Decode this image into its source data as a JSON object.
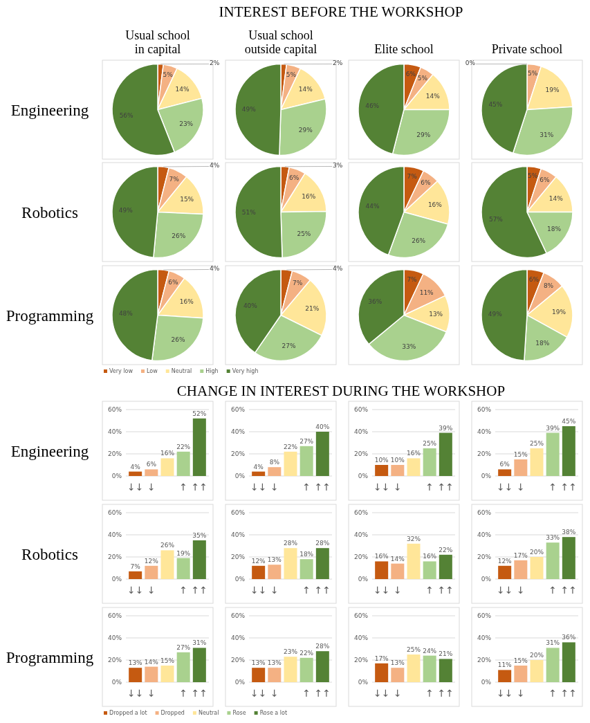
{
  "chart_data": [
    {
      "type": "pie",
      "title": "Usual school in capital",
      "annotations": [
        "INTEREST BEFORE THE WORKSHOP",
        "Engineering"
      ],
      "categories": [
        null,
        null,
        null,
        null,
        null
      ],
      "values": [
        2,
        5,
        14,
        23,
        56
      ],
      "value_labels": [
        "2%",
        "5%",
        "14%",
        "23%",
        "56%"
      ],
      "colors": [
        "#c55a11",
        "#f4b183",
        "#ffe699",
        "#a9d18e",
        "#548235"
      ]
    },
    {
      "type": "pie",
      "title": "Usual school outside capital",
      "categories": [
        null,
        null,
        null,
        null,
        null
      ],
      "values": [
        2,
        5,
        14,
        29,
        49
      ],
      "value_labels": [
        "2%",
        "5%",
        "14%",
        "29%",
        "49%"
      ],
      "colors": [
        "#c55a11",
        "#f4b183",
        "#ffe699",
        "#a9d18e",
        "#548235"
      ]
    },
    {
      "type": "pie",
      "title": "Elite school",
      "categories": [
        null,
        null,
        null,
        null,
        null
      ],
      "values": [
        6,
        5,
        14,
        29,
        46
      ],
      "value_labels": [
        "6%",
        "5%",
        "14%",
        "29%",
        "46%"
      ],
      "colors": [
        "#c55a11",
        "#f4b183",
        "#ffe699",
        "#a9d18e",
        "#548235"
      ]
    },
    {
      "type": "pie",
      "title": "Private school",
      "categories": [
        null,
        null,
        null,
        null,
        null
      ],
      "values": [
        0,
        5,
        19,
        31,
        45
      ],
      "value_labels": [
        "0%",
        "5%",
        "19%",
        "31%",
        "45%"
      ],
      "colors": [
        "#c55a11",
        "#f4b183",
        "#ffe699",
        "#a9d18e",
        "#548235"
      ]
    },
    {
      "type": "pie",
      "annotations": [
        "Robotics"
      ],
      "categories": [
        null,
        null,
        null,
        null,
        null
      ],
      "values": [
        4,
        7,
        15,
        26,
        49
      ],
      "value_labels": [
        "4%",
        "7%",
        "15%",
        "26%",
        "49%"
      ],
      "colors": [
        "#c55a11",
        "#f4b183",
        "#ffe699",
        "#a9d18e",
        "#548235"
      ]
    },
    {
      "type": "pie",
      "categories": [
        null,
        null,
        null,
        null,
        null
      ],
      "values": [
        3,
        6,
        16,
        25,
        51
      ],
      "value_labels": [
        "3%",
        "6%",
        "16%",
        "25%",
        "51%"
      ],
      "colors": [
        "#c55a11",
        "#f4b183",
        "#ffe699",
        "#a9d18e",
        "#548235"
      ]
    },
    {
      "type": "pie",
      "categories": [
        null,
        null,
        null,
        null,
        null
      ],
      "values": [
        7,
        6,
        16,
        26,
        44
      ],
      "value_labels": [
        "7%",
        "6%",
        "16%",
        "26%",
        "44%"
      ],
      "colors": [
        "#c55a11",
        "#f4b183",
        "#ffe699",
        "#a9d18e",
        "#548235"
      ]
    },
    {
      "type": "pie",
      "categories": [
        null,
        null,
        null,
        null,
        null
      ],
      "values": [
        5,
        6,
        14,
        18,
        57
      ],
      "value_labels": [
        "5%",
        "6%",
        "14%",
        "18%",
        "57%"
      ],
      "colors": [
        "#c55a11",
        "#f4b183",
        "#ffe699",
        "#a9d18e",
        "#548235"
      ]
    },
    {
      "type": "pie",
      "annotations": [
        "Programming"
      ],
      "legend": "bottom",
      "categories": [
        "Very low",
        "Low",
        "Neutral",
        "High",
        "Very high"
      ],
      "values": [
        4,
        6,
        16,
        26,
        48
      ],
      "value_labels": [
        "4%",
        "6%",
        "16%",
        "26%",
        "48%"
      ],
      "colors": [
        "#c55a11",
        "#f4b183",
        "#ffe699",
        "#a9d18e",
        "#548235"
      ]
    },
    {
      "type": "pie",
      "categories": [
        null,
        null,
        null,
        null,
        null
      ],
      "values": [
        4,
        7,
        21,
        27,
        40
      ],
      "value_labels": [
        "4%",
        "7%",
        "21%",
        "27%",
        "40%"
      ],
      "colors": [
        "#c55a11",
        "#f4b183",
        "#ffe699",
        "#a9d18e",
        "#548235"
      ]
    },
    {
      "type": "pie",
      "categories": [
        null,
        null,
        null,
        null,
        null
      ],
      "values": [
        7,
        11,
        13,
        33,
        36
      ],
      "value_labels": [
        "7%",
        "11%",
        "13%",
        "33%",
        "36%"
      ],
      "colors": [
        "#c55a11",
        "#f4b183",
        "#ffe699",
        "#a9d18e",
        "#548235"
      ]
    },
    {
      "type": "pie",
      "categories": [
        null,
        null,
        null,
        null,
        null
      ],
      "values": [
        6,
        8,
        19,
        18,
        49
      ],
      "value_labels": [
        "6%",
        "8%",
        "19%",
        "18%",
        "49%"
      ],
      "colors": [
        "#c55a11",
        "#f4b183",
        "#ffe699",
        "#a9d18e",
        "#548235"
      ]
    },
    {
      "type": "bar",
      "annotations": [
        "CHANGE IN INTEREST DURING THE WORKSHOP",
        "Engineering"
      ],
      "categories": [
        "↓↓",
        "↓",
        null,
        "↑",
        "↑↑"
      ],
      "values": [
        4,
        6,
        16,
        22,
        52
      ],
      "value_labels": [
        "4%",
        "6%",
        "16%",
        "22%",
        "52%"
      ],
      "colors": [
        "#c55a11",
        "#f4b183",
        "#ffe699",
        "#a9d18e",
        "#548235"
      ],
      "ylim": [
        0,
        60
      ],
      "yticks": [
        {
          "value": 0,
          "label": "0%"
        },
        {
          "value": 20,
          "label": "20%"
        },
        {
          "value": 40,
          "label": "40%"
        },
        {
          "value": 60,
          "label": "60%"
        }
      ],
      "grid": "y"
    },
    {
      "type": "bar",
      "categories": [
        "↓↓",
        "↓",
        null,
        "↑",
        "↑↑"
      ],
      "values": [
        4,
        8,
        22,
        27,
        40
      ],
      "value_labels": [
        "4%",
        "8%",
        "22%",
        "27%",
        "40%"
      ],
      "colors": [
        "#c55a11",
        "#f4b183",
        "#ffe699",
        "#a9d18e",
        "#548235"
      ],
      "ylim": [
        0,
        60
      ],
      "yticks": [
        {
          "value": 0,
          "label": "0%"
        },
        {
          "value": 20,
          "label": "20%"
        },
        {
          "value": 40,
          "label": "40%"
        },
        {
          "value": 60,
          "label": "60%"
        }
      ],
      "grid": "y"
    },
    {
      "type": "bar",
      "categories": [
        "↓↓",
        "↓",
        null,
        "↑",
        "↑↑"
      ],
      "values": [
        10,
        10,
        16,
        25,
        39
      ],
      "value_labels": [
        "10%",
        "10%",
        "16%",
        "25%",
        "39%"
      ],
      "colors": [
        "#c55a11",
        "#f4b183",
        "#ffe699",
        "#a9d18e",
        "#548235"
      ],
      "ylim": [
        0,
        60
      ],
      "yticks": [
        {
          "value": 0,
          "label": "0%"
        },
        {
          "value": 20,
          "label": "20%"
        },
        {
          "value": 40,
          "label": "40%"
        },
        {
          "value": 60,
          "label": "60%"
        }
      ],
      "grid": "y"
    },
    {
      "type": "bar",
      "categories": [
        "↓↓",
        "↓",
        null,
        "↑",
        "↑↑"
      ],
      "values": [
        6,
        15,
        25,
        39,
        45
      ],
      "value_labels": [
        "6%",
        "15%",
        "25%",
        "39%",
        "45%"
      ],
      "colors": [
        "#c55a11",
        "#f4b183",
        "#ffe699",
        "#a9d18e",
        "#548235"
      ],
      "ylim": [
        0,
        60
      ],
      "yticks": [
        {
          "value": 0,
          "label": "0%"
        },
        {
          "value": 20,
          "label": "20%"
        },
        {
          "value": 40,
          "label": "40%"
        },
        {
          "value": 60,
          "label": "60%"
        }
      ],
      "grid": "y"
    },
    {
      "type": "bar",
      "annotations": [
        "Robotics"
      ],
      "categories": [
        "↓↓",
        "↓",
        null,
        "↑",
        "↑↑"
      ],
      "values": [
        7,
        12,
        26,
        19,
        35
      ],
      "value_labels": [
        "7%",
        "12%",
        "26%",
        "19%",
        "35%"
      ],
      "colors": [
        "#c55a11",
        "#f4b183",
        "#ffe699",
        "#a9d18e",
        "#548235"
      ],
      "ylim": [
        0,
        60
      ],
      "yticks": [
        {
          "value": 0,
          "label": "0%"
        },
        {
          "value": 20,
          "label": "20%"
        },
        {
          "value": 40,
          "label": "40%"
        },
        {
          "value": 60,
          "label": "60%"
        }
      ],
      "grid": "y"
    },
    {
      "type": "bar",
      "categories": [
        "↓↓",
        "↓",
        null,
        "↑",
        "↑↑"
      ],
      "values": [
        12,
        13,
        28,
        18,
        28
      ],
      "value_labels": [
        "12%",
        "13%",
        "28%",
        "18%",
        "28%"
      ],
      "colors": [
        "#c55a11",
        "#f4b183",
        "#ffe699",
        "#a9d18e",
        "#548235"
      ],
      "ylim": [
        0,
        60
      ],
      "yticks": [
        {
          "value": 0,
          "label": "0%"
        },
        {
          "value": 20,
          "label": "20%"
        },
        {
          "value": 40,
          "label": "40%"
        },
        {
          "value": 60,
          "label": "60%"
        }
      ],
      "grid": "y"
    },
    {
      "type": "bar",
      "categories": [
        "↓↓",
        "↓",
        null,
        "↑",
        "↑↑"
      ],
      "values": [
        16,
        14,
        32,
        16,
        22
      ],
      "value_labels": [
        "16%",
        "14%",
        "32%",
        "16%",
        "22%"
      ],
      "colors": [
        "#c55a11",
        "#f4b183",
        "#ffe699",
        "#a9d18e",
        "#548235"
      ],
      "ylim": [
        0,
        60
      ],
      "yticks": [
        {
          "value": 0,
          "label": "0%"
        },
        {
          "value": 20,
          "label": "20%"
        },
        {
          "value": 40,
          "label": "40%"
        },
        {
          "value": 60,
          "label": "60%"
        }
      ],
      "grid": "y"
    },
    {
      "type": "bar",
      "categories": [
        "↓↓",
        "↓",
        null,
        "↑",
        "↑↑"
      ],
      "values": [
        12,
        17,
        20,
        33,
        38
      ],
      "value_labels": [
        "12%",
        "17%",
        "20%",
        "33%",
        "38%"
      ],
      "colors": [
        "#c55a11",
        "#f4b183",
        "#ffe699",
        "#a9d18e",
        "#548235"
      ],
      "ylim": [
        0,
        60
      ],
      "yticks": [
        {
          "value": 0,
          "label": "0%"
        },
        {
          "value": 20,
          "label": "20%"
        },
        {
          "value": 40,
          "label": "40%"
        },
        {
          "value": 60,
          "label": "60%"
        }
      ],
      "grid": "y"
    },
    {
      "type": "bar",
      "annotations": [
        "Programming"
      ],
      "legend": "bottom",
      "categories": [
        "↓↓",
        "↓",
        null,
        "↑",
        "↑↑"
      ],
      "series": [
        {
          "name": "Dropped a lot",
          "color": "#c55a11",
          "values": [
            13,
            null,
            null,
            null,
            null
          ],
          "value_labels": [
            "13%",
            null,
            null,
            null,
            null
          ]
        },
        {
          "name": "Dropped",
          "color": "#f4b183",
          "values": [
            null,
            14,
            null,
            null,
            null
          ],
          "value_labels": [
            null,
            "14%",
            null,
            null,
            null
          ]
        },
        {
          "name": "Neutral",
          "color": "#ffe699",
          "values": [
            null,
            null,
            15,
            null,
            null
          ],
          "value_labels": [
            null,
            null,
            "15%",
            null,
            null
          ]
        },
        {
          "name": "Rose",
          "color": "#a9d18e",
          "values": [
            null,
            null,
            null,
            27,
            null
          ],
          "value_labels": [
            null,
            null,
            null,
            "27%",
            null
          ]
        },
        {
          "name": "Rose a lot",
          "color": "#548235",
          "values": [
            null,
            null,
            null,
            null,
            31
          ],
          "value_labels": [
            null,
            null,
            null,
            null,
            "31%"
          ]
        }
      ],
      "ylim": [
        0,
        60
      ],
      "yticks": [
        {
          "value": 0,
          "label": "0%"
        },
        {
          "value": 20,
          "label": "20%"
        },
        {
          "value": 40,
          "label": "40%"
        },
        {
          "value": 60,
          "label": "60%"
        }
      ],
      "grid": "y"
    },
    {
      "type": "bar",
      "categories": [
        "↓↓",
        "↓",
        null,
        "↑",
        "↑↑"
      ],
      "values": [
        13,
        13,
        23,
        22,
        28
      ],
      "value_labels": [
        "13%",
        "13%",
        "23%",
        "22%",
        "28%"
      ],
      "colors": [
        "#c55a11",
        "#f4b183",
        "#ffe699",
        "#a9d18e",
        "#548235"
      ],
      "ylim": [
        0,
        60
      ],
      "yticks": [
        {
          "value": 0,
          "label": "0%"
        },
        {
          "value": 20,
          "label": "20%"
        },
        {
          "value": 40,
          "label": "40%"
        },
        {
          "value": 60,
          "label": "60%"
        }
      ],
      "grid": "y"
    },
    {
      "type": "bar",
      "categories": [
        "↓↓",
        "↓",
        null,
        "↑",
        "↑↑"
      ],
      "values": [
        17,
        13,
        25,
        24,
        21
      ],
      "value_labels": [
        "17%",
        "13%",
        "25%",
        "24%",
        "21%"
      ],
      "colors": [
        "#c55a11",
        "#f4b183",
        "#ffe699",
        "#a9d18e",
        "#548235"
      ],
      "ylim": [
        0,
        60
      ],
      "yticks": [
        {
          "value": 0,
          "label": "0%"
        },
        {
          "value": 20,
          "label": "20%"
        },
        {
          "value": 40,
          "label": "40%"
        },
        {
          "value": 60,
          "label": "60%"
        }
      ],
      "grid": "y"
    },
    {
      "type": "bar",
      "categories": [
        "↓↓",
        "↓",
        null,
        "↑",
        "↑↑"
      ],
      "values": [
        11,
        15,
        20,
        31,
        36
      ],
      "value_labels": [
        "11%",
        "15%",
        "20%",
        "31%",
        "36%"
      ],
      "colors": [
        "#c55a11",
        "#f4b183",
        "#ffe699",
        "#a9d18e",
        "#548235"
      ],
      "ylim": [
        0,
        60
      ],
      "yticks": [
        {
          "value": 0,
          "label": "0%"
        },
        {
          "value": 20,
          "label": "20%"
        },
        {
          "value": 40,
          "label": "40%"
        },
        {
          "value": 60,
          "label": "60%"
        }
      ],
      "grid": "y"
    }
  ]
}
